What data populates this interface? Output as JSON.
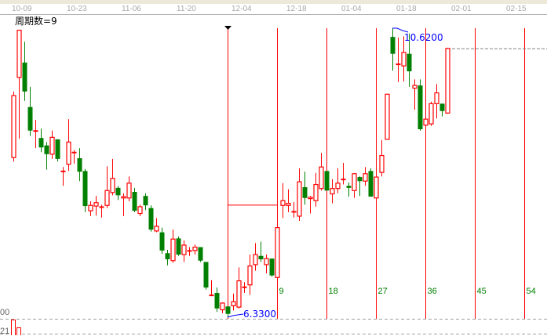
{
  "header": {
    "dates": [
      "10-09",
      "10-23",
      "11-06",
      "11-20",
      "12-04",
      "12-18",
      "01-04",
      "01-18",
      "02-01",
      "02-15"
    ],
    "cycle_title": "周期数=9"
  },
  "chart_data": {
    "type": "candlestick",
    "title": "",
    "colors": {
      "up": "#ff0000",
      "down": "#008000",
      "annotation": "#0000ff",
      "cycle_label": "#008000",
      "cycle_line": "#ff0000"
    },
    "ohlc_fields": [
      "open",
      "high",
      "low",
      "close"
    ],
    "candles": [
      [
        8.7,
        9.68,
        8.64,
        9.62
      ],
      [
        9.89,
        10.59,
        8.98,
        10.59
      ],
      [
        10.11,
        10.42,
        9.54,
        9.68
      ],
      [
        9.45,
        9.75,
        9.02,
        9.1
      ],
      [
        9.1,
        9.26,
        8.84,
        9.1
      ],
      [
        8.99,
        9.13,
        8.78,
        8.85
      ],
      [
        8.88,
        8.93,
        8.52,
        8.75
      ],
      [
        8.75,
        9.1,
        8.68,
        9.0
      ],
      [
        8.97,
        8.97,
        8.64,
        8.68
      ],
      [
        8.5,
        8.56,
        8.28,
        8.5
      ],
      [
        8.6,
        9.27,
        8.5,
        8.93
      ],
      [
        8.78,
        8.81,
        8.61,
        8.78
      ],
      [
        8.69,
        8.84,
        8.35,
        8.49
      ],
      [
        8.5,
        8.53,
        7.89,
        7.98
      ],
      [
        7.91,
        8.05,
        7.83,
        7.99
      ],
      [
        7.98,
        8.13,
        7.84,
        8.03
      ],
      [
        7.97,
        8.0,
        7.81,
        7.97
      ],
      [
        7.99,
        8.57,
        7.95,
        8.21
      ],
      [
        8.18,
        8.68,
        8.14,
        8.39
      ],
      [
        8.25,
        8.28,
        8.07,
        8.14
      ],
      [
        8.1,
        8.17,
        7.83,
        8.12
      ],
      [
        8.1,
        8.42,
        8.05,
        8.32
      ],
      [
        8.19,
        8.25,
        7.89,
        7.91
      ],
      [
        7.87,
        8.0,
        7.83,
        7.97
      ],
      [
        8.13,
        8.17,
        7.92,
        7.99
      ],
      [
        7.95,
        7.99,
        7.6,
        7.63
      ],
      [
        7.61,
        7.8,
        7.59,
        7.68
      ],
      [
        7.59,
        7.66,
        7.27,
        7.32
      ],
      [
        7.28,
        7.33,
        7.1,
        7.19
      ],
      [
        7.17,
        7.63,
        7.14,
        7.49
      ],
      [
        7.5,
        7.53,
        7.24,
        7.26
      ],
      [
        7.26,
        7.47,
        7.15,
        7.4
      ],
      [
        7.32,
        7.37,
        7.24,
        7.32
      ],
      [
        7.32,
        7.41,
        7.26,
        7.37
      ],
      [
        7.37,
        7.37,
        7.15,
        7.17
      ],
      [
        7.15,
        7.15,
        6.74,
        6.77
      ],
      [
        6.66,
        6.88,
        6.66,
        6.66
      ],
      [
        6.69,
        6.77,
        6.41,
        6.46
      ],
      [
        6.44,
        6.55,
        6.39,
        6.54
      ],
      [
        6.49,
        6.49,
        6.33,
        6.38
      ],
      [
        6.5,
        6.68,
        6.43,
        6.56
      ],
      [
        6.48,
        7.07,
        6.46,
        6.87
      ],
      [
        6.78,
        6.85,
        6.69,
        6.78
      ],
      [
        6.81,
        7.26,
        6.66,
        7.09
      ],
      [
        7.11,
        7.43,
        7.02,
        7.26
      ],
      [
        7.24,
        7.45,
        7.15,
        7.19
      ],
      [
        7.11,
        7.26,
        6.98,
        7.2
      ],
      [
        7.2,
        7.2,
        6.93,
        6.95
      ],
      [
        6.92,
        7.66,
        6.92,
        7.66
      ],
      [
        7.99,
        8.32,
        7.8,
        8.06
      ],
      [
        7.99,
        8.23,
        7.89,
        8.02
      ],
      [
        7.9,
        8.04,
        7.81,
        7.9
      ],
      [
        7.83,
        8.54,
        7.76,
        8.34
      ],
      [
        8.26,
        8.49,
        8.0,
        8.1
      ],
      [
        8.09,
        8.13,
        7.87,
        8.11
      ],
      [
        8.06,
        8.47,
        7.97,
        8.3
      ],
      [
        8.24,
        8.77,
        8.21,
        8.56
      ],
      [
        8.5,
        8.5,
        8.21,
        8.21
      ],
      [
        8.16,
        8.38,
        8.02,
        8.24
      ],
      [
        8.24,
        8.54,
        8.17,
        8.32
      ],
      [
        8.38,
        8.62,
        8.3,
        8.38
      ],
      [
        8.28,
        8.33,
        8.12,
        8.25
      ],
      [
        8.21,
        8.47,
        8.1,
        8.46
      ],
      [
        8.41,
        8.42,
        8.13,
        8.35
      ],
      [
        8.35,
        8.56,
        8.28,
        8.46
      ],
      [
        8.5,
        8.54,
        8.12,
        8.12
      ],
      [
        8.1,
        8.41,
        8.1,
        8.41
      ],
      [
        8.48,
        8.96,
        8.42,
        8.73
      ],
      [
        8.97,
        9.64,
        8.97,
        9.64
      ],
      [
        10.49,
        10.62,
        9.99,
        10.24
      ],
      [
        10.09,
        10.48,
        9.82,
        10.09
      ],
      [
        10.06,
        10.5,
        9.83,
        10.26
      ],
      [
        10.24,
        10.54,
        9.75,
        9.98
      ],
      [
        9.73,
        9.86,
        9.41,
        9.77
      ],
      [
        9.77,
        9.86,
        9.1,
        9.12
      ],
      [
        9.18,
        9.27,
        9.18,
        9.27
      ],
      [
        9.2,
        9.53,
        9.17,
        9.5
      ],
      [
        9.5,
        9.79,
        9.28,
        9.66
      ],
      [
        9.5,
        9.5,
        9.31,
        9.39
      ],
      [
        9.36,
        10.33,
        9.35,
        10.32
      ]
    ],
    "cycle": {
      "period": 9,
      "start_bar": 40,
      "labels": [
        "9",
        "18",
        "27",
        "36",
        "45",
        "54"
      ],
      "start_bar_level": 8.0
    },
    "annotations": {
      "high_label": "10.6200",
      "high_value": 10.62,
      "low_label": "6.3300",
      "low_value": 6.33,
      "last_price_line": 10.32
    },
    "axis_labels": {
      "price_partial": "00",
      "volume_partial": "21"
    }
  }
}
